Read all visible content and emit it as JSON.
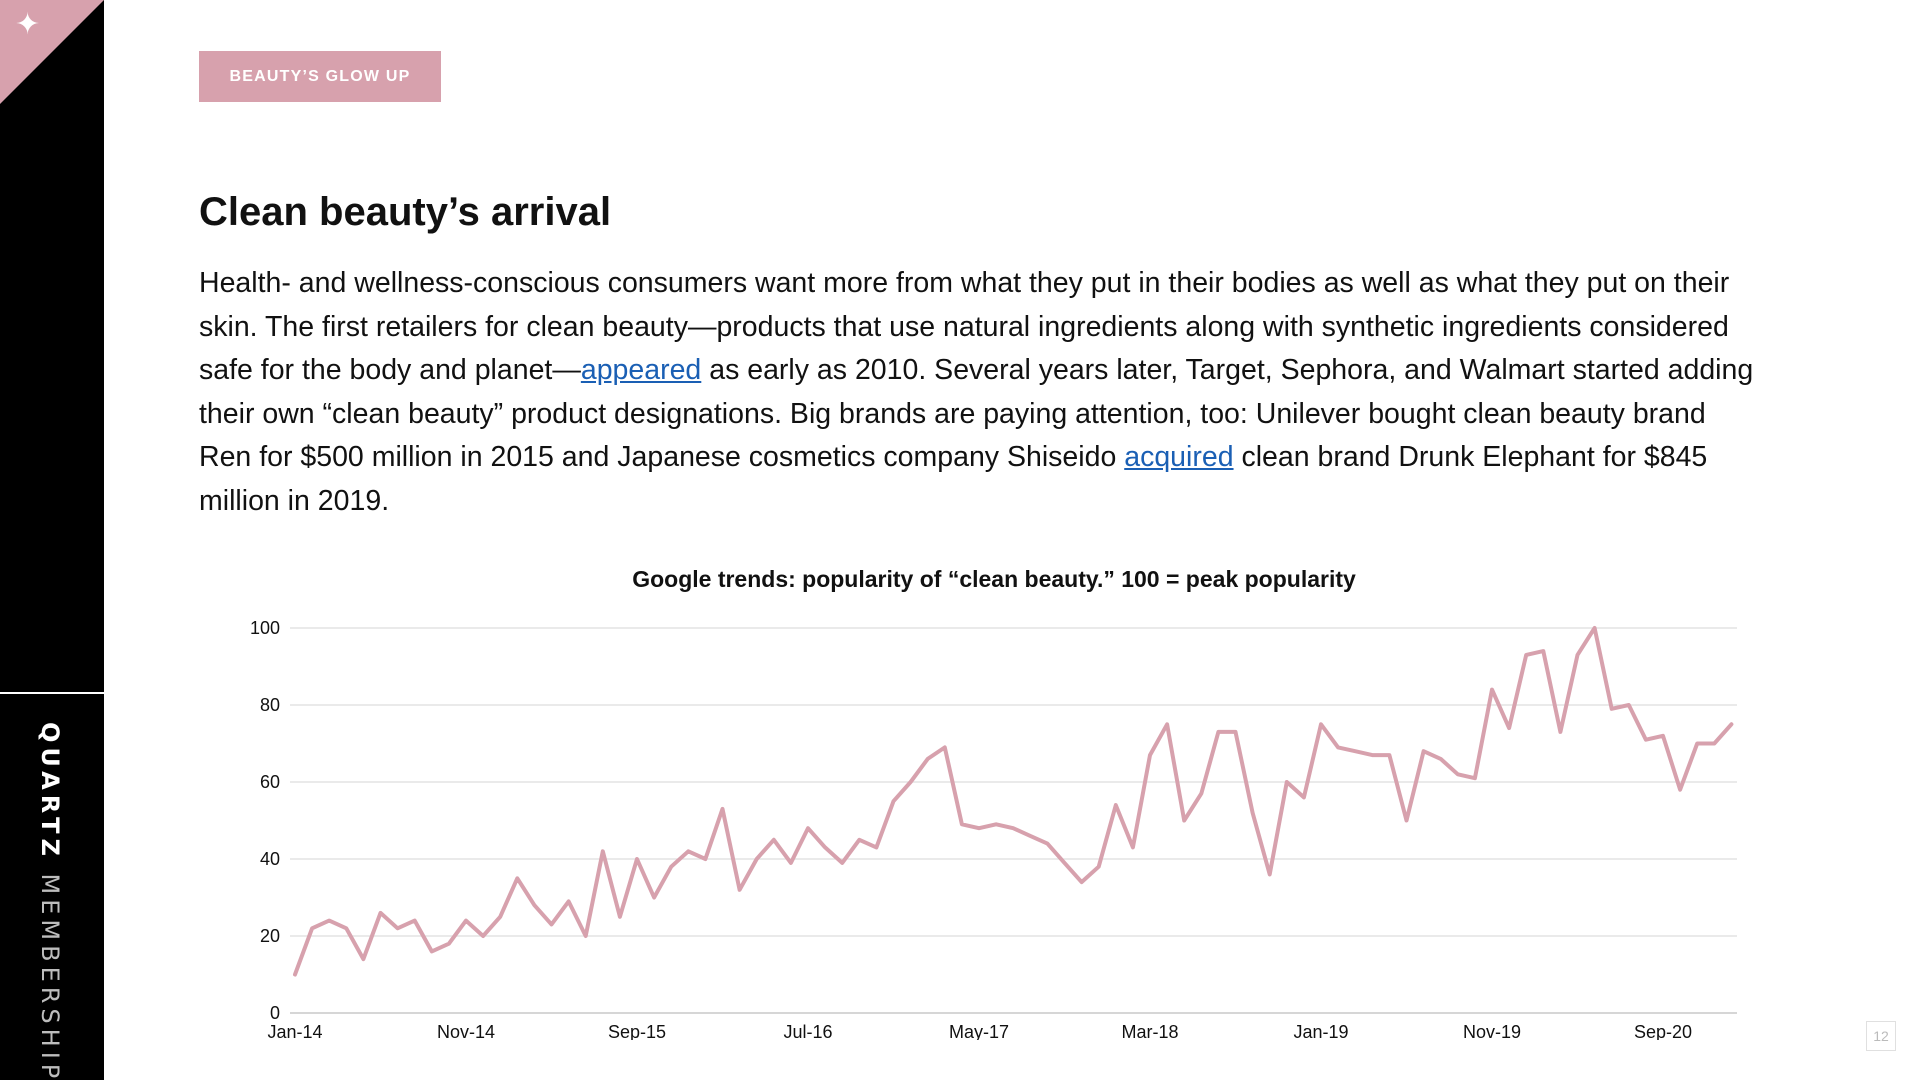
{
  "sidebar": {
    "corner_icon": "sparkle-icon",
    "brand_primary": "QUARTZ",
    "brand_secondary": "MEMBERSHIP"
  },
  "section_tag": "BEAUTY’S GLOW UP",
  "title": "Clean beauty’s arrival",
  "body": {
    "p1": "Health- and wellness-conscious consumers want more from what they put in their bodies as well as what they put on their skin. The first retailers for clean beauty—products that use natural ingredients along with synthetic ingredients considered safe for the body and planet—",
    "link1": "appeared",
    "p2": " as early as 2010. Several years later, Target, Sephora, and Walmart started adding their own “clean beauty” product designations. Big brands are paying attention, too: Unilever bought clean beauty brand Ren for $500 million in 2015 and Japanese cosmetics company Shiseido ",
    "link2": "acquired",
    "p3": " clean brand Drunk Elephant for $845 million in 2019."
  },
  "chart_data": {
    "type": "line",
    "title": "Google trends: popularity of “clean beauty.” 100 = peak popularity",
    "xlabel": "",
    "ylabel": "",
    "ylim": [
      0,
      100
    ],
    "yticks": [
      0,
      20,
      40,
      60,
      80,
      100
    ],
    "x_start": "Jan-14",
    "x_tick_labels": [
      "Jan-14",
      "Nov-14",
      "Sep-15",
      "Jul-16",
      "May-17",
      "Mar-18",
      "Jan-19",
      "Nov-19",
      "Sep-20"
    ],
    "grid": true,
    "line_color": "#d7a1ad",
    "series": [
      {
        "values": [
          10,
          22,
          24,
          22,
          14,
          26,
          22,
          24,
          16,
          18,
          24,
          20,
          25,
          35,
          28,
          23,
          29,
          20,
          42,
          25,
          40,
          30,
          38,
          42,
          40,
          53,
          32,
          40,
          45,
          39,
          48,
          43,
          39,
          45,
          43,
          55,
          60,
          66,
          69,
          49,
          48,
          49,
          48,
          46,
          44,
          39,
          34,
          38,
          54,
          43,
          67,
          75,
          50,
          57,
          73,
          73,
          52,
          36,
          60,
          56,
          75,
          69,
          68,
          67,
          67,
          50,
          68,
          66,
          62,
          61,
          84,
          74,
          93,
          94,
          73,
          93,
          100,
          79,
          80,
          71,
          72,
          58,
          70,
          70,
          75
        ]
      }
    ]
  },
  "page_number": "12"
}
